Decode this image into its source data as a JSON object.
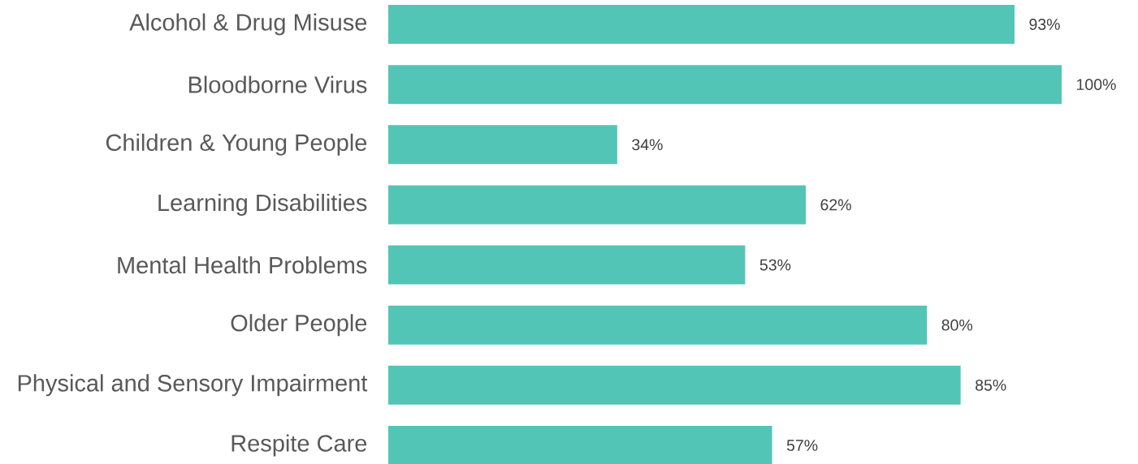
{
  "chart_data": {
    "type": "bar",
    "orientation": "horizontal",
    "categories": [
      "Alcohol & Drug Misuse",
      "Bloodborne Virus",
      "Children & Young People",
      "Learning Disabilities",
      "Mental Health Problems",
      "Older People",
      "Physical and Sensory Impairment",
      "Respite Care"
    ],
    "values": [
      93,
      100,
      34,
      62,
      53,
      80,
      85,
      57
    ],
    "value_labels": [
      "93%",
      "100%",
      "34%",
      "62%",
      "53%",
      "80%",
      "85%",
      "57%"
    ],
    "color": "#52c5b6"
  }
}
